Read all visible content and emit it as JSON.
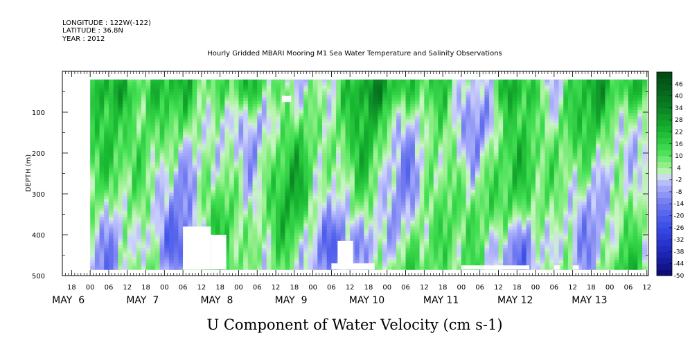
{
  "header": {
    "longitude": "LONGITUDE : 122W(-122)",
    "latitude": "LATITUDE : 36.8N",
    "year": "YEAR : 2012",
    "title": "Hourly Gridded MBARI Mooring M1 Sea Water Temperature and Salinity Observations"
  },
  "chart_data": {
    "type": "heatmap",
    "title": "Hourly Gridded MBARI Mooring M1 Sea Water Temperature and Salinity Observations",
    "variable_title": "U Component of Water Velocity (cm s-1)",
    "ylabel": "DEPTH (m)",
    "y_range": [
      500,
      0
    ],
    "y_ticks": [
      100,
      200,
      300,
      400,
      500
    ],
    "x_hour_ticks": [
      "18",
      "00",
      "06",
      "12",
      "18",
      "00",
      "06",
      "12",
      "18",
      "00",
      "06",
      "12",
      "18",
      "00",
      "06",
      "12",
      "18",
      "00",
      "06",
      "12",
      "18",
      "00",
      "06",
      "12",
      "18",
      "00",
      "06",
      "12",
      "18",
      "00",
      "06",
      "12"
    ],
    "x_date_labels": [
      "MAY  6",
      "MAY  7",
      "MAY  8",
      "MAY  9",
      "MAY 10",
      "MAY 11",
      "MAY 12",
      "MAY 13"
    ],
    "data_time_range": [
      "May 6 00:00",
      "May 13 12:00"
    ],
    "data_depth_range_m": [
      20,
      485
    ],
    "colorbar": {
      "levels": [
        "46",
        "40",
        "34",
        "28",
        "22",
        "16",
        "10",
        "4",
        "-2",
        "-8",
        "-14",
        "-20",
        "-26",
        "-32",
        "-38",
        "-44",
        "-50"
      ],
      "range": [
        -50,
        52
      ],
      "step": 3
    },
    "field_description_ranges": {
      "dominant_range": [
        -14,
        22
      ],
      "colors": {
        "positive": "#22c03c",
        "near_zero_pos": "#a8f0a0",
        "near_zero_neg": "#b0b8f8",
        "negative": "#7a80f0"
      }
    }
  },
  "colors": {
    "frame": "#000000",
    "bg": "#ffffff"
  }
}
